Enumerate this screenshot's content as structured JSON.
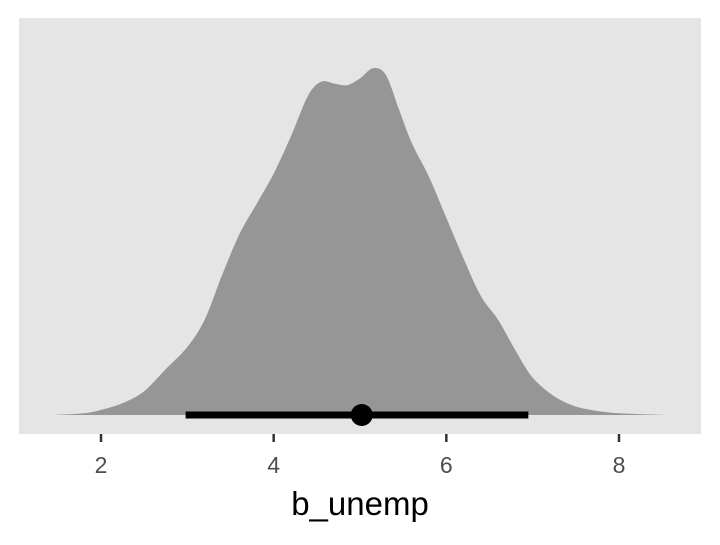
{
  "chart_data": {
    "type": "area",
    "xlabel": "b_unemp",
    "ylabel": "",
    "xlim": [
      1.05,
      8.95
    ],
    "ylim": [
      0,
      1
    ],
    "x_ticks": [
      2,
      4,
      6,
      8
    ],
    "x_tick_labels": [
      "2",
      "4",
      "6",
      "8"
    ],
    "grid": false,
    "y_axis_shown": false,
    "density": {
      "name": "",
      "x": [
        1.45,
        1.8,
        2.0,
        2.25,
        2.5,
        2.75,
        3.0,
        3.2,
        3.4,
        3.6,
        3.8,
        4.0,
        4.2,
        4.4,
        4.55,
        4.7,
        4.85,
        5.0,
        5.15,
        5.3,
        5.45,
        5.6,
        5.8,
        6.0,
        6.2,
        6.4,
        6.6,
        6.8,
        7.0,
        7.25,
        7.5,
        7.8,
        8.1,
        8.6
      ],
      "y": [
        0.0,
        0.005,
        0.015,
        0.035,
        0.07,
        0.135,
        0.2,
        0.28,
        0.41,
        0.53,
        0.62,
        0.71,
        0.82,
        0.94,
        0.98,
        0.975,
        0.97,
        0.99,
        1.02,
        1.0,
        0.9,
        0.8,
        0.7,
        0.58,
        0.46,
        0.35,
        0.28,
        0.19,
        0.11,
        0.055,
        0.025,
        0.01,
        0.004,
        0.0
      ]
    },
    "interval": {
      "point": 5.02,
      "low": 2.98,
      "high": 6.95
    },
    "colors": {
      "panel_background": "#e5e5e5",
      "density_fill": "#969696",
      "interval": "#000000",
      "tick": "#333333",
      "tick_label": "#4d4d4d"
    }
  }
}
